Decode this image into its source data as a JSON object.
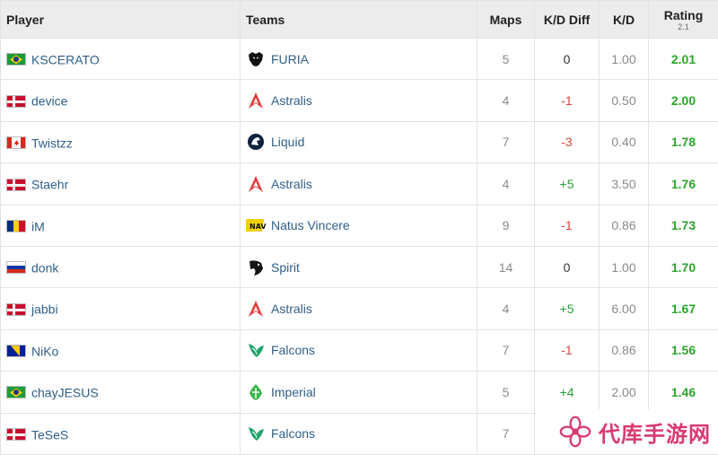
{
  "headers": {
    "player": "Player",
    "teams": "Teams",
    "maps": "Maps",
    "kd_diff": "K/D Diff",
    "kd": "K/D",
    "rating": "Rating",
    "rating_version": "2.1"
  },
  "rows": [
    {
      "player": "KSCERATO",
      "flag": "brazil",
      "team": "FURIA",
      "team_icon": "furia-panther-icon",
      "maps": "5",
      "kd_diff": "0",
      "kd": "1.00",
      "rating": "2.01"
    },
    {
      "player": "device",
      "flag": "denmark",
      "team": "Astralis",
      "team_icon": "astralis-star-icon",
      "maps": "4",
      "kd_diff": "-1",
      "kd": "0.50",
      "rating": "2.00"
    },
    {
      "player": "Twistzz",
      "flag": "canada",
      "team": "Liquid",
      "team_icon": "liquid-horse-icon",
      "maps": "7",
      "kd_diff": "-3",
      "kd": "0.40",
      "rating": "1.78"
    },
    {
      "player": "Staehr",
      "flag": "denmark",
      "team": "Astralis",
      "team_icon": "astralis-star-icon",
      "maps": "4",
      "kd_diff": "+5",
      "kd": "3.50",
      "rating": "1.76"
    },
    {
      "player": "iM",
      "flag": "romania",
      "team": "Natus Vincere",
      "team_icon": "navi-icon",
      "maps": "9",
      "kd_diff": "-1",
      "kd": "0.86",
      "rating": "1.73"
    },
    {
      "player": "donk",
      "flag": "russia",
      "team": "Spirit",
      "team_icon": "spirit-dragon-icon",
      "maps": "14",
      "kd_diff": "0",
      "kd": "1.00",
      "rating": "1.70"
    },
    {
      "player": "jabbi",
      "flag": "denmark",
      "team": "Astralis",
      "team_icon": "astralis-star-icon",
      "maps": "4",
      "kd_diff": "+5",
      "kd": "6.00",
      "rating": "1.67"
    },
    {
      "player": "NiKo",
      "flag": "bosnia",
      "team": "Falcons",
      "team_icon": "falcons-icon",
      "maps": "7",
      "kd_diff": "-1",
      "kd": "0.86",
      "rating": "1.56"
    },
    {
      "player": "chayJESUS",
      "flag": "brazil",
      "team": "Imperial",
      "team_icon": "imperial-icon",
      "maps": "5",
      "kd_diff": "+4",
      "kd": "2.00",
      "rating": "1.46"
    },
    {
      "player": "TeSeS",
      "flag": "denmark",
      "team": "Falcons",
      "team_icon": "falcons-icon",
      "maps": "7",
      "kd_diff": "",
      "kd": "",
      "rating": ""
    }
  ],
  "colors": {
    "header_bg": "#ececec",
    "player_link": "#2f5f8a",
    "positive": "#2e9e3a",
    "negative": "#d9443a",
    "rating": "#2aa52a",
    "watermark": "#d93a6f"
  },
  "watermark": {
    "text": "代库手游网",
    "icon": "flower-logo-icon"
  }
}
